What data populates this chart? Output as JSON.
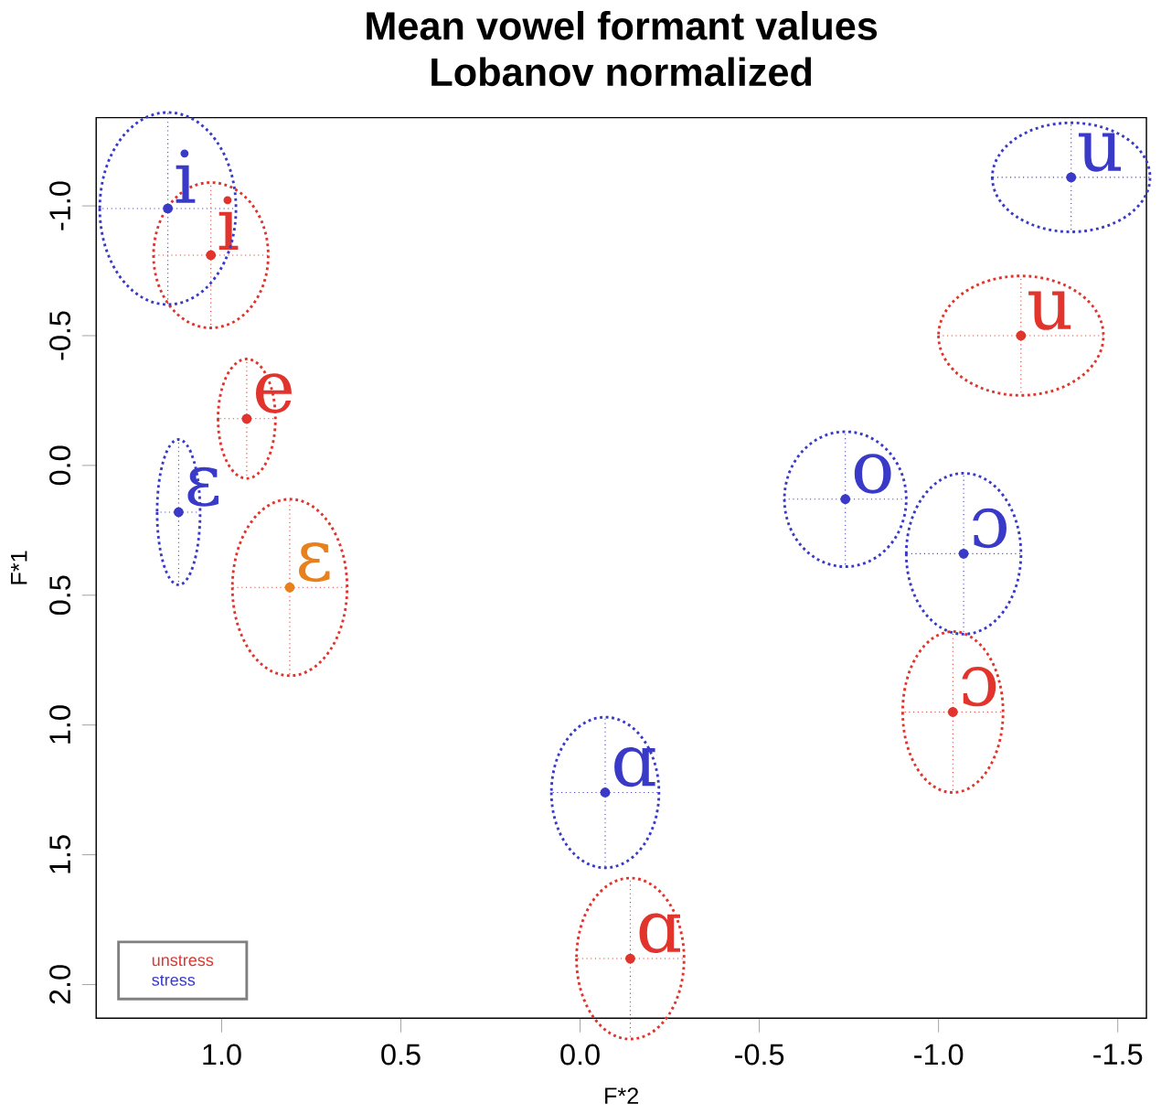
{
  "chart_data": {
    "type": "scatter",
    "title": "Mean vowel formant values",
    "subtitle": "Lobanov normalized",
    "xlabel": "F*2",
    "ylabel": "F*1",
    "xlim": [
      1.35,
      -1.58
    ],
    "ylim": [
      2.13,
      -1.34
    ],
    "xticks": [
      {
        "value": 1,
        "label": "1.0"
      },
      0.5,
      {
        "value": 0,
        "label": "0.0"
      },
      -0.5,
      {
        "value": -1,
        "label": "-1.0"
      },
      -1.5
    ],
    "yticks": [
      {
        "value": -1,
        "label": "-1.0"
      },
      -0.5,
      {
        "value": 0,
        "label": "0.0"
      },
      0.5,
      {
        "value": 1,
        "label": "1.0"
      },
      1.5,
      {
        "value": 2,
        "label": "2.0"
      }
    ],
    "legend": "bottom left",
    "line_style": "dotted",
    "grid": false,
    "series": [
      {
        "name": "unstress",
        "color": "#e0342c",
        "x": [
          1.03,
          0.93,
          0.81,
          -1.23,
          -1.04,
          -0.14
        ],
        "values": [
          -0.81,
          -0.18,
          0.47,
          -0.5,
          0.95,
          1.9
        ],
        "xerrors": [
          0.16,
          0.08,
          0.16,
          0.23,
          0.14,
          0.15
        ],
        "errors": [
          0.28,
          0.23,
          0.34,
          0.23,
          0.31,
          0.31
        ],
        "value_labels": [
          "i",
          "e",
          "ɛ",
          "u",
          "ɔ",
          "ɑ"
        ],
        "colors": [
          "#e0342c",
          "#e0342c",
          "#e8801e",
          "#e0342c",
          "#e0342c",
          "#e0342c"
        ]
      },
      {
        "name": "stress",
        "color": "#3a3ac8",
        "x": [
          1.15,
          1.12,
          -1.37,
          -0.74,
          -1.07,
          -0.07
        ],
        "values": [
          -0.99,
          0.18,
          -1.11,
          0.13,
          0.34,
          1.26
        ],
        "xerrors": [
          0.19,
          0.06,
          0.22,
          0.17,
          0.16,
          0.15
        ],
        "errors": [
          0.37,
          0.28,
          0.21,
          0.26,
          0.31,
          0.29
        ],
        "value_labels": [
          "i",
          "ɛ",
          "u",
          "o",
          "ɔ",
          "ɑ"
        ],
        "colors": [
          "#3a3ac8",
          "#3a3ac8",
          "#3a3ac8",
          "#3a3ac8",
          "#3a3ac8",
          "#3a3ac8"
        ]
      }
    ]
  }
}
